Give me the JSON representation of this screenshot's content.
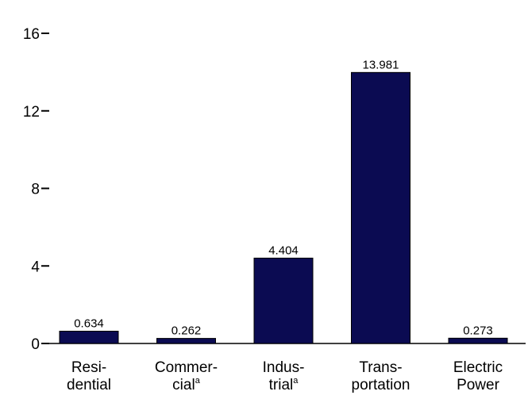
{
  "chart_data": {
    "type": "bar",
    "title": "",
    "xlabel": "",
    "ylabel": "",
    "ylim": [
      0,
      16
    ],
    "yticks": [
      0,
      4,
      8,
      12,
      16
    ],
    "grid": false,
    "bar_color": "#0b0b52",
    "categories": [
      {
        "lines": [
          "Resi-",
          "dential"
        ],
        "sup": ""
      },
      {
        "lines": [
          "Commer-",
          "cial"
        ],
        "sup": "a"
      },
      {
        "lines": [
          "Indus-",
          "trial"
        ],
        "sup": "a"
      },
      {
        "lines": [
          "Trans-",
          "portation"
        ],
        "sup": ""
      },
      {
        "lines": [
          "Electric",
          "Power"
        ],
        "sup": ""
      }
    ],
    "values": [
      0.634,
      0.262,
      4.404,
      13.981,
      0.273
    ],
    "data_labels": [
      "0.634",
      "0.262",
      "4.404",
      "13.981",
      "0.273"
    ]
  }
}
